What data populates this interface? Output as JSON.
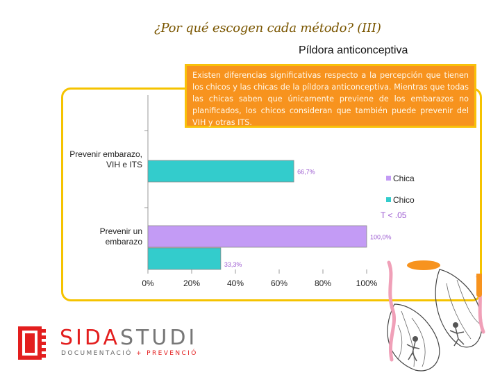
{
  "slide": {
    "title": "¿Por qué escogen cada método? (III)",
    "callout": "Existen diferencias significativas respecto a la percepción que tienen los chicos y las chicas de la píldora anticonceptiva. Mientras que todas las chicas saben que únicamente previene de los embarazos no planificados, los chicos consideran que también puede prevenir del VIH y otras ITS."
  },
  "chart_data": {
    "type": "bar",
    "orientation": "horizontal",
    "title": "Píldora anticonceptiva",
    "categories": [
      [
        "Prevenir embarazo,",
        "VIH e ITS"
      ],
      [
        "Prevenir un",
        "embarazo"
      ]
    ],
    "series": [
      {
        "name": "Chica",
        "color": "#c39bf5",
        "values": [
          null,
          100.0
        ],
        "labels": [
          "",
          "100,0%"
        ]
      },
      {
        "name": "Chico",
        "color": "#33cccc",
        "values": [
          66.7,
          33.3
        ],
        "labels": [
          "66,7%",
          "33,3%"
        ]
      }
    ],
    "xlim": [
      0,
      100
    ],
    "xticks": [
      "0%",
      "20%",
      "40%",
      "60%",
      "80%",
      "100%"
    ],
    "legend_position": "right",
    "annotation": "T < .05",
    "label_color": "#9b59d0"
  },
  "branding": {
    "name_part1": "SIDA",
    "name_part2": "STUDI",
    "sub_part1": "DOCUMENTACIÓ",
    "sub_part2": "+ PREVENCIÓ"
  }
}
